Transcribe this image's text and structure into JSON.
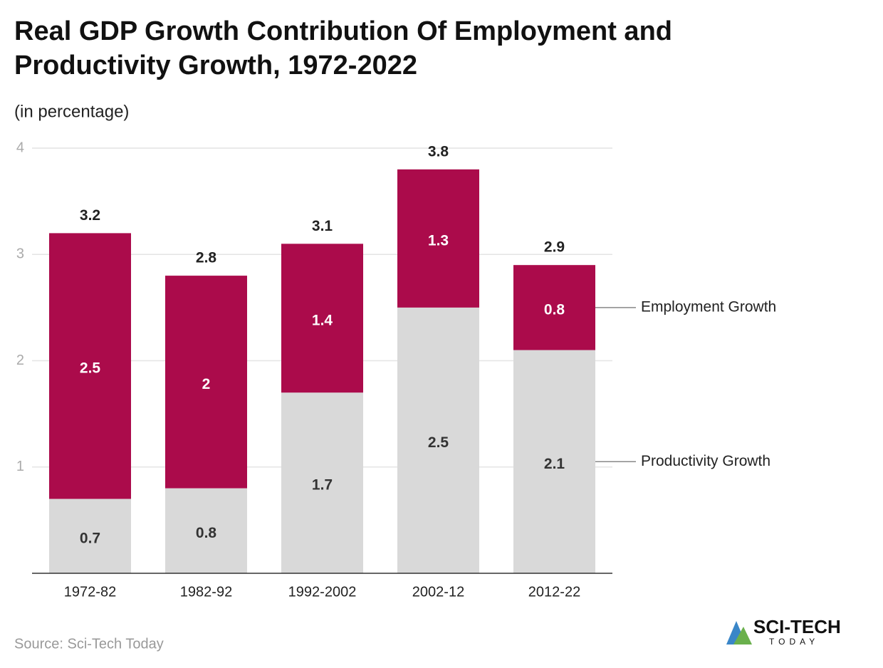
{
  "chart_data": {
    "type": "stacked_bar",
    "title": "Real GDP Growth Contribution Of Employment and Productivity Growth, 1972-2022",
    "subtitle": "(in percentage)",
    "categories": [
      "1972-82",
      "1982-92",
      "1992-2002",
      "2002-12",
      "2012-22"
    ],
    "series": [
      {
        "name": "Productivity Growth",
        "color": "#d9d9d9",
        "values": [
          0.7,
          0.8,
          1.7,
          2.5,
          2.1
        ]
      },
      {
        "name": "Employment Growth",
        "color": "#ab0b4b",
        "values": [
          2.5,
          2,
          1.4,
          1.3,
          0.8
        ]
      }
    ],
    "totals": [
      3.2,
      2.8,
      3.1,
      3.8,
      2.9
    ],
    "ylim": [
      0,
      4
    ],
    "yticks": [
      1,
      2,
      3,
      4
    ],
    "grid": true,
    "source": "Source: Sci-Tech Today",
    "logo": {
      "name": "SCI-TECH",
      "tagline": "TODAY"
    }
  }
}
